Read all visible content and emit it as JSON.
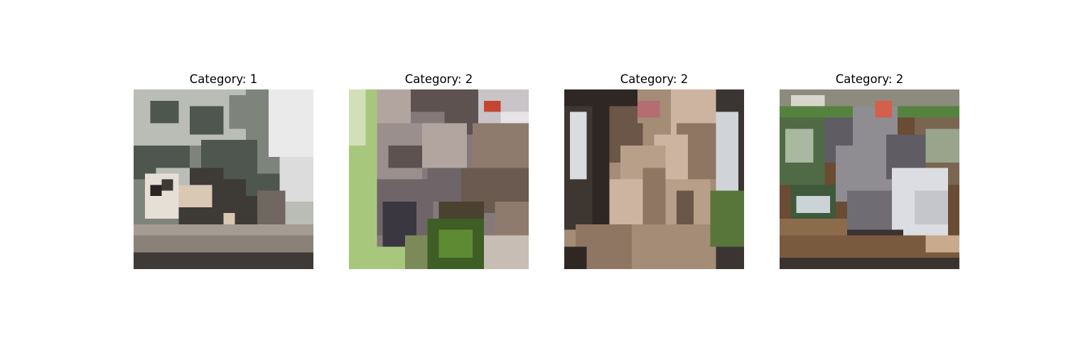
{
  "panels": [
    {
      "title": "Category: 1",
      "scene": "panda-on-rock",
      "colors": {
        "tree_dark": "#4f5650",
        "tree_mid": "#7e847c",
        "tree_light": "#b9bdb6",
        "sky": "#eaeaea",
        "body_light": "#d8c8b4",
        "body_dark": "#3e3a36",
        "rock": "#8a8178",
        "ground": "#3d3a38"
      }
    },
    {
      "title": "Category: 2",
      "scene": "koala-closeup",
      "colors": {
        "grass": "#a7c87c",
        "fur_dark": "#5d5250",
        "fur_mid": "#85797a",
        "fur_light": "#b2a59f",
        "leaf": "#3f5e26",
        "accent": "#c44532"
      }
    },
    {
      "title": "Category: 2",
      "scene": "koala-tan-fur",
      "colors": {
        "dark": "#2e2723",
        "fur_mid": "#a48c77",
        "fur_light": "#cdb4a0",
        "fur_dark": "#6c5647",
        "window": "#d9dde0",
        "green": "#58753a"
      }
    },
    {
      "title": "Category: 2",
      "scene": "koala-in-enclosure",
      "colors": {
        "wood": "#6a4b33",
        "green": "#55833f",
        "fur_grey": "#8f8c92",
        "fur_white": "#dcdde2",
        "fur_dark": "#5f5c63",
        "shadow": "#3a3330"
      }
    }
  ]
}
